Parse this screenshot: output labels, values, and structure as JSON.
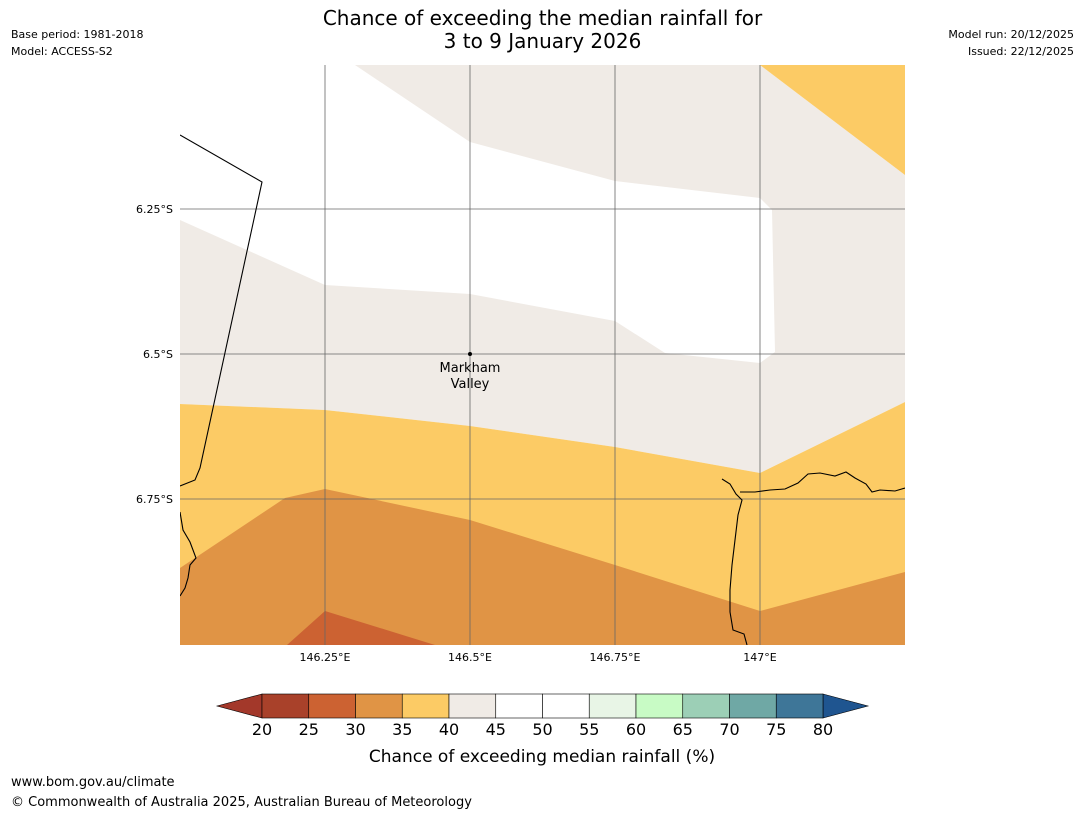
{
  "header": {
    "title_line1": "Chance of exceeding the median rainfall for",
    "title_line2": "3 to 9 January 2026",
    "base_period": "Base period: 1981-2018",
    "model": "Model: ACCESS-S2",
    "model_run": "Model run: 20/12/2025",
    "issued": "Issued: 22/12/2025"
  },
  "map": {
    "place_label_line1": "Markham",
    "place_label_line2": "Valley",
    "lat_labels": [
      "6.25°S",
      "6.5°S",
      "6.75°S"
    ],
    "lon_labels": [
      "146.25°E",
      "146.5°E",
      "146.75°E",
      "147°E"
    ]
  },
  "legend": {
    "ticks": [
      "20",
      "25",
      "30",
      "35",
      "40",
      "45",
      "50",
      "55",
      "60",
      "65",
      "70",
      "75",
      "80"
    ],
    "colors": [
      "#a9412a",
      "#cc6232",
      "#e09445",
      "#fccb65",
      "#f0ebe6",
      "#ffffff",
      "#ffffff",
      "#e8f5e6",
      "#c8fbc5",
      "#9ccfb6",
      "#6fa8a5",
      "#3e7698"
    ],
    "under_color": "#a3382a",
    "over_color": "#1f5590",
    "label": "Chance of exceeding median rainfall (%)"
  },
  "footer": {
    "url": "www.bom.gov.au/climate",
    "copyright": "© Commonwealth of Australia 2025, Australian Bureau of Meteorology"
  }
}
